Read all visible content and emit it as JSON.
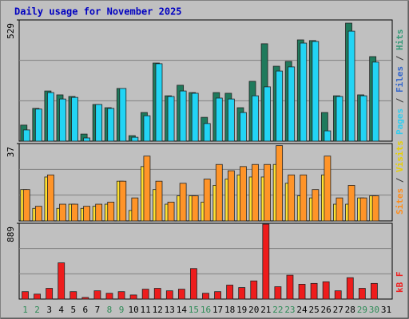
{
  "chart_data": [
    {
      "type": "bar",
      "title": "Daily usage for November 2025",
      "categories": [
        "1",
        "2",
        "3",
        "4",
        "5",
        "6",
        "7",
        "8",
        "9",
        "10",
        "11",
        "12",
        "13",
        "14",
        "15",
        "16",
        "17",
        "18",
        "19",
        "20",
        "21",
        "22",
        "23",
        "24",
        "25",
        "26",
        "27",
        "28",
        "29",
        "30",
        "31"
      ],
      "category_colors": [
        "#2e8b57",
        "#2e8b57",
        "#000000",
        "#000000",
        "#000000",
        "#000000",
        "#000000",
        "#2e8b57",
        "#2e8b57",
        "#000000",
        "#000000",
        "#000000",
        "#000000",
        "#000000",
        "#2e8b57",
        "#2e8b57",
        "#000000",
        "#000000",
        "#000000",
        "#000000",
        "#000000",
        "#2e8b57",
        "#2e8b57",
        "#000000",
        "#000000",
        "#000000",
        "#000000",
        "#000000",
        "#2e8b57",
        "#2e8b57",
        "#000000"
      ],
      "ylim": [
        0,
        529
      ],
      "yticks": [
        529
      ],
      "ylabel_parts": [
        {
          "text": "Pages",
          "color": "#33ccee"
        },
        {
          "text": " / ",
          "color": "#333333"
        },
        {
          "text": "Files",
          "color": "#3366cc"
        },
        {
          "text": " / ",
          "color": "#333333"
        },
        {
          "text": "Hits",
          "color": "#339977"
        }
      ],
      "series": [
        {
          "name": "Hits",
          "color": "#1f7a5c",
          "values": [
            70,
            143,
            219,
            202,
            195,
            31,
            160,
            146,
            230,
            24,
            125,
            341,
            198,
            244,
            212,
            104,
            212,
            209,
            146,
            261,
            425,
            327,
            348,
            442,
            439,
            125,
            198,
            515,
            202,
            369,
            null
          ]
        },
        {
          "name": "Pages",
          "color": "#22d4f4",
          "values": [
            49,
            140,
            212,
            184,
            191,
            14,
            160,
            143,
            230,
            17,
            111,
            338,
            195,
            219,
            209,
            77,
            188,
            184,
            125,
            198,
            237,
            306,
            324,
            428,
            435,
            45,
            195,
            480,
            198,
            345,
            null
          ]
        }
      ]
    },
    {
      "type": "bar",
      "ylim": [
        0,
        37
      ],
      "yticks": [
        37
      ],
      "ylabel_parts": [
        {
          "text": "Sites",
          "color": "#ff8c1a"
        },
        {
          "text": " / ",
          "color": "#333333"
        },
        {
          "text": "Visits",
          "color": "#e8d000"
        }
      ],
      "series": [
        {
          "name": "Visits",
          "color": "#ffe030",
          "values": [
            15,
            6,
            21,
            6,
            8,
            6,
            7,
            8,
            19,
            5,
            26,
            15,
            8,
            12,
            12,
            9,
            17,
            20,
            22,
            21,
            21,
            27,
            18,
            12,
            11,
            22,
            8,
            8,
            11,
            12,
            null
          ]
        },
        {
          "name": "Sites",
          "color": "#ff9428",
          "values": [
            15,
            7,
            22,
            8,
            8,
            7,
            8,
            9,
            19,
            11,
            31,
            19,
            9,
            18,
            12,
            20,
            27,
            24,
            26,
            27,
            27,
            36,
            22,
            22,
            15,
            31,
            11,
            17,
            11,
            12,
            null
          ]
        }
      ]
    },
    {
      "type": "bar",
      "ylim": [
        0,
        889
      ],
      "yticks": [
        889
      ],
      "ylabel_parts": [
        {
          "text": "kB F",
          "color": "#ee2222"
        }
      ],
      "series": [
        {
          "name": "kB F",
          "color": "#ee1c1c",
          "values": [
            87,
            58,
            126,
            425,
            87,
            19,
            97,
            68,
            87,
            48,
            116,
            126,
            97,
            116,
            358,
            68,
            87,
            164,
            135,
            213,
            879,
            145,
            280,
            174,
            184,
            203,
            97,
            251,
            126,
            184,
            null
          ]
        }
      ]
    }
  ]
}
